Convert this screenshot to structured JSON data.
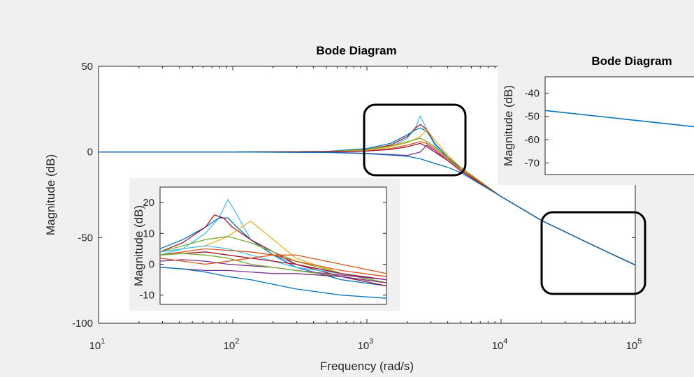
{
  "colors": {
    "background": "#f0f0f0",
    "axes_bg": "#ffffff",
    "axes_line": "#262626",
    "highlight_box": "#000000",
    "main_line": "#0072bd"
  },
  "chart_data": [
    {
      "type": "line",
      "title": "Bode Diagram",
      "xlabel": "Frequency  (rad/s)",
      "ylabel": "Magnitude (dB)",
      "xscale": "log",
      "xlim": [
        10,
        100000
      ],
      "ylim": [
        -100,
        50
      ],
      "x_ticks": [
        10,
        100,
        1000,
        10000,
        100000
      ],
      "x_tick_labels": [
        {
          "base": "10",
          "exp": "1"
        },
        {
          "base": "10",
          "exp": "2"
        },
        {
          "base": "10",
          "exp": "3"
        },
        {
          "base": "10",
          "exp": "4"
        },
        {
          "base": "10",
          "exp": "5"
        }
      ],
      "y_ticks": [
        50,
        0,
        -50,
        -100
      ],
      "y_tick_labels": [
        "50",
        "0",
        "-50",
        "-100"
      ],
      "series": [
        {
          "color": "#4dbeee",
          "x": [
            10,
            100,
            500,
            1000,
            1500,
            2000,
            2300,
            2500,
            2800,
            3200,
            4000,
            5000,
            10000,
            20000,
            50000,
            100000
          ],
          "y": [
            0,
            0,
            0.3,
            1,
            3,
            8,
            14,
            21,
            13,
            4,
            -4,
            -10,
            -26,
            -40,
            -55,
            -66
          ]
        },
        {
          "color": "#a2142f",
          "x": [
            10,
            100,
            500,
            1000,
            1500,
            2000,
            2300,
            2500,
            2800,
            3200,
            4000,
            5000,
            10000,
            20000,
            50000,
            100000
          ],
          "y": [
            0,
            0,
            0.3,
            1.5,
            4,
            9,
            14,
            16,
            13,
            5,
            -3,
            -10,
            -26,
            -40,
            -55,
            -66
          ]
        },
        {
          "color": "#0072bd",
          "x": [
            10,
            100,
            500,
            1000,
            1500,
            2000,
            2300,
            2500,
            2800,
            3200,
            4000,
            5000,
            10000,
            20000,
            50000,
            100000
          ],
          "y": [
            0,
            0,
            0.3,
            2,
            5,
            10,
            13,
            14,
            12,
            5,
            -3,
            -10,
            -26,
            -40,
            -55,
            -66
          ]
        },
        {
          "color": "#edb120",
          "x": [
            10,
            100,
            500,
            1000,
            1500,
            2000,
            2500,
            2800,
            3200,
            4000,
            5000,
            10000,
            20000,
            50000,
            100000
          ],
          "y": [
            0,
            0,
            0.2,
            1,
            3,
            5.5,
            9,
            13,
            7,
            -2,
            -9,
            -26,
            -40,
            -55,
            -66
          ]
        },
        {
          "color": "#77ac30",
          "x": [
            10,
            100,
            500,
            1000,
            1500,
            2000,
            2500,
            2800,
            3200,
            4000,
            5000,
            10000,
            20000,
            50000,
            100000
          ],
          "y": [
            0,
            0,
            0.2,
            1.5,
            3.5,
            6,
            8,
            6,
            3,
            -3,
            -9,
            -26,
            -40,
            -55,
            -66
          ]
        },
        {
          "color": "#d95319",
          "x": [
            10,
            100,
            500,
            1000,
            1500,
            2000,
            2500,
            2800,
            3200,
            4000,
            5000,
            10000,
            20000,
            50000,
            100000
          ],
          "y": [
            0,
            0,
            0.1,
            0.5,
            2,
            4,
            6,
            5,
            2,
            -4,
            -10,
            -26,
            -40,
            -55,
            -66
          ]
        },
        {
          "color": "#7e2f8e",
          "x": [
            10,
            100,
            500,
            1000,
            1500,
            2000,
            2500,
            2800,
            3200,
            4000,
            5000,
            10000,
            20000,
            50000,
            100000
          ],
          "y": [
            0,
            0,
            -0.2,
            -0.8,
            -1.5,
            -2,
            0,
            4,
            1,
            -5,
            -11,
            -26,
            -40,
            -55,
            -66
          ]
        },
        {
          "color": "#a2142f",
          "x": [
            10,
            100,
            500,
            1000,
            1500,
            2000,
            2500,
            2800,
            3200,
            4000,
            5000,
            10000,
            20000,
            50000,
            100000
          ],
          "y": [
            0,
            0,
            0.1,
            0.5,
            1.5,
            3,
            5,
            3,
            0,
            -5,
            -11,
            -26,
            -40,
            -55,
            -66
          ]
        },
        {
          "color": "#0072bd",
          "x": [
            10,
            100,
            500,
            1000,
            1500,
            2000,
            2500,
            3000,
            4000,
            5000,
            10000,
            20000,
            50000,
            100000
          ],
          "y": [
            0,
            0,
            -0.3,
            -1,
            -1.8,
            -2.5,
            -4,
            -6,
            -9,
            -12,
            -26,
            -40,
            -55,
            -66
          ]
        }
      ]
    },
    {
      "type": "line",
      "title": "",
      "xlabel": "",
      "ylabel": "Magnitude (dB)",
      "xlim": [
        1000,
        6000
      ],
      "ylim": [
        -13,
        25
      ],
      "y_ticks": [
        20,
        10,
        0,
        -10
      ],
      "y_tick_labels": [
        "20",
        "10",
        "0",
        "-10"
      ],
      "series": [
        {
          "color": "#4dbeee",
          "x": [
            1000,
            1500,
            2000,
            2300,
            2500,
            2700,
            3000,
            3500,
            4000,
            5000,
            6000
          ],
          "y": [
            3,
            5,
            10,
            15,
            21,
            16,
            8,
            3,
            0,
            -4,
            -7
          ]
        },
        {
          "color": "#0072bd",
          "x": [
            1000,
            1500,
            2000,
            2300,
            2500,
            2700,
            3000,
            3500,
            4000,
            5000,
            6000
          ],
          "y": [
            5,
            8,
            12,
            15,
            15,
            12,
            8,
            3,
            -1,
            -5,
            -7
          ]
        },
        {
          "color": "#a2142f",
          "x": [
            1000,
            1500,
            2000,
            2200,
            2400,
            2600,
            3000,
            3500,
            4000,
            5000,
            6000
          ],
          "y": [
            4,
            7,
            12,
            16,
            15,
            12,
            8,
            4,
            0,
            -4,
            -7
          ]
        },
        {
          "color": "#edb120",
          "x": [
            1000,
            1500,
            2000,
            2500,
            2800,
            3000,
            3500,
            4000,
            5000,
            6000
          ],
          "y": [
            4,
            5,
            6,
            9,
            12,
            14,
            8,
            2,
            -3,
            -6
          ]
        },
        {
          "color": "#77ac30",
          "x": [
            1000,
            1500,
            2000,
            2500,
            3000,
            3500,
            4000,
            5000,
            6000
          ],
          "y": [
            4,
            6,
            8,
            9,
            7,
            4,
            1,
            -3,
            -6
          ]
        },
        {
          "color": "#4dbeee",
          "x": [
            1000,
            1500,
            2000,
            2500,
            3000,
            3500,
            4000,
            5000,
            6000
          ],
          "y": [
            4,
            5,
            6,
            5,
            3,
            1,
            -1,
            -3,
            -5
          ]
        },
        {
          "color": "#d95319",
          "x": [
            1000,
            1500,
            2000,
            2500,
            3000,
            3500,
            4000,
            5000,
            6000
          ],
          "y": [
            3,
            4,
            5,
            4.5,
            4,
            3,
            1,
            -2,
            -4
          ]
        },
        {
          "color": "#a2142f",
          "x": [
            1000,
            1500,
            2000,
            2500,
            3000,
            3500,
            4000,
            5000,
            6000
          ],
          "y": [
            3,
            3.5,
            4,
            3,
            2,
            1,
            0,
            -3,
            -5
          ]
        },
        {
          "color": "#7e2f8e",
          "x": [
            1000,
            1500,
            2000,
            2500,
            3000,
            3500,
            4000,
            5000,
            6000
          ],
          "y": [
            1,
            1.5,
            1,
            0,
            -0.5,
            -1,
            -2,
            -3.5,
            -5
          ]
        },
        {
          "color": "#77ac30",
          "x": [
            1000,
            1500,
            2000,
            2500,
            3000,
            3500,
            4000,
            5000,
            6000
          ],
          "y": [
            3,
            3.5,
            3,
            2,
            0,
            -1,
            -2,
            -4,
            -6
          ]
        },
        {
          "color": "#d95319",
          "x": [
            1000,
            1500,
            2000,
            2500,
            3000,
            3500,
            4000,
            5000,
            6000
          ],
          "y": [
            2,
            1,
            0,
            1,
            2,
            3,
            3,
            0,
            -3
          ]
        },
        {
          "color": "#7e2f8e",
          "x": [
            1000,
            1500,
            2000,
            2500,
            3000,
            3500,
            4000,
            5000,
            6000
          ],
          "y": [
            -1,
            -1.5,
            -2,
            -2,
            -2.5,
            -3,
            -3,
            -4,
            -6
          ]
        },
        {
          "color": "#0072bd",
          "x": [
            1000,
            1500,
            2000,
            2500,
            3000,
            3500,
            4000,
            5000,
            6000
          ],
          "y": [
            -1,
            -1.5,
            -2.5,
            -4,
            -5,
            -6.5,
            -8,
            -10,
            -11
          ]
        }
      ]
    },
    {
      "type": "line",
      "title": "Bode Diagram",
      "xlabel": "",
      "ylabel": "Magnitude (dB)",
      "xlim": [
        0,
        1
      ],
      "ylim": [
        -75,
        -33
      ],
      "y_ticks": [
        -40,
        -50,
        -60,
        -70
      ],
      "y_tick_labels": [
        "-40",
        "-50",
        "-60",
        "-70"
      ],
      "series": [
        {
          "color": "#0072bd",
          "x": [
            0,
            1
          ],
          "y": [
            -47.5,
            -55
          ]
        }
      ]
    }
  ]
}
